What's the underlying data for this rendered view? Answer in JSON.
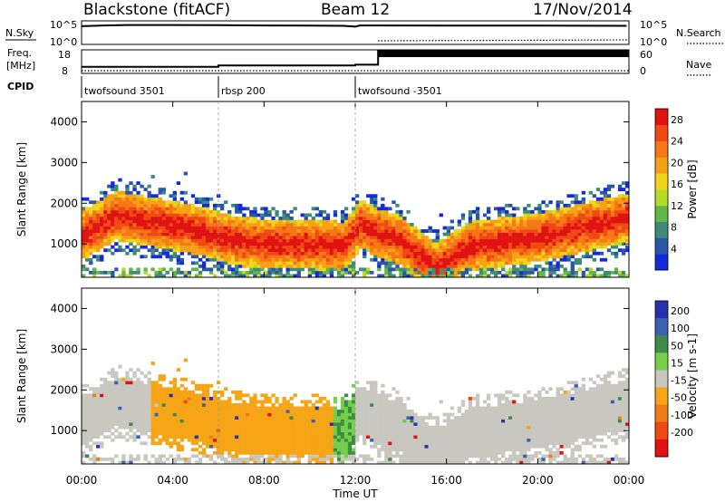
{
  "header": {
    "station": "Blackstone (fitACF)",
    "beam": "Beam 12",
    "date": "17/Nov/2014"
  },
  "noise_panel": {
    "left_label": "N.Sky",
    "right_label": "N.Search",
    "left_ticks": [
      "10^5",
      "10^0"
    ],
    "right_ticks": [
      "10^5",
      "10^0"
    ]
  },
  "freq_panel": {
    "left_label_1": "Freq.",
    "left_label_2": "[MHz]",
    "right_label": "Nave",
    "left_ticks": [
      "18",
      "8"
    ],
    "right_ticks": [
      "60",
      "0"
    ]
  },
  "cpid": {
    "label": "CPID",
    "segments": [
      {
        "name": "twofsound 3501",
        "start_hr": 0.0
      },
      {
        "name": "rbsp 200",
        "start_hr": 6.0
      },
      {
        "name": "twofsound -3501",
        "start_hr": 12.0
      }
    ]
  },
  "axes": {
    "xlabel": "Time UT",
    "x_ticks": [
      "00:00",
      "04:00",
      "08:00",
      "12:00",
      "16:00",
      "20:00",
      "00:00"
    ],
    "ylabel_top": "Slant Range [km]",
    "ylabel_bottom": "Slant Range [km]",
    "y_ticks": [
      "1000",
      "2000",
      "3000",
      "4000"
    ]
  },
  "colorbars": {
    "power": {
      "label": "Power [dB]",
      "ticks": [
        "4",
        "8",
        "12",
        "16",
        "20",
        "24",
        "28"
      ],
      "colors": [
        "#1428dc",
        "#2a56a8",
        "#3f8a78",
        "#62b64a",
        "#b6da2a",
        "#f2d41a",
        "#f7a216",
        "#f77616",
        "#f04a14",
        "#e01212"
      ]
    },
    "velocity": {
      "label": "Velocity [m s-1]",
      "ticks": [
        "200",
        "100",
        "50",
        "15",
        "-15",
        "-50",
        "-100",
        "-200"
      ],
      "colors": [
        "#2830b0",
        "#3a62b0",
        "#3f8a48",
        "#74d04a",
        "#c8c8c0",
        "#f5a516",
        "#f27a16",
        "#ee4a14",
        "#e01212"
      ]
    }
  },
  "chart_data": [
    {
      "type": "line",
      "panel": "noise",
      "x_unit": "hours UT",
      "xlim": [
        0,
        24
      ],
      "series": [
        {
          "x": [
            0,
            1,
            2,
            4,
            6,
            8,
            10,
            11.5,
            12,
            12.2,
            13,
            16,
            20,
            23.9
          ],
          "values_log10": [
            4.6,
            4.8,
            4.9,
            4.9,
            4.85,
            4.8,
            4.75,
            4.7,
            4.5,
            4.8,
            4.8,
            4.75,
            4.75,
            4.7
          ]
        }
      ]
    },
    {
      "type": "line",
      "panel": "frequency",
      "x_unit": "hours UT",
      "ylim": [
        8,
        18
      ],
      "series": [
        {
          "x": [
            0,
            6,
            6,
            12,
            12,
            13,
            13,
            24
          ],
          "values": [
            10.6,
            10.6,
            11.2,
            11.2,
            11.6,
            11.6,
            17.8,
            17.8
          ]
        }
      ]
    },
    {
      "type": "heatmap",
      "panel": "power",
      "x_unit": "hours UT",
      "y_unit": "km",
      "xlim": [
        0,
        24
      ],
      "ylim": [
        180,
        4500
      ],
      "z_unit": "dB",
      "band_peak_range_km": [
        {
          "t": 0.0,
          "km": 1200
        },
        {
          "t": 1.5,
          "km": 1700
        },
        {
          "t": 3.0,
          "km": 1550
        },
        {
          "t": 5.0,
          "km": 1350
        },
        {
          "t": 7.0,
          "km": 1050
        },
        {
          "t": 9.0,
          "km": 1000
        },
        {
          "t": 11.5,
          "km": 950
        },
        {
          "t": 12.3,
          "km": 1500
        },
        {
          "t": 13.0,
          "km": 1250
        },
        {
          "t": 14.0,
          "km": 1100
        },
        {
          "t": 15.5,
          "km": 400
        },
        {
          "t": 17.0,
          "km": 950
        },
        {
          "t": 20.0,
          "km": 1150
        },
        {
          "t": 24.0,
          "km": 1650
        }
      ]
    },
    {
      "type": "heatmap",
      "panel": "velocity",
      "x_unit": "hours UT",
      "y_unit": "km",
      "xlim": [
        0,
        24
      ],
      "ylim": [
        180,
        4500
      ],
      "z_unit": "m s-1",
      "dominant_velocity": [
        {
          "t_start": 0.0,
          "t_end": 3.0,
          "value": 0
        },
        {
          "t_start": 3.0,
          "t_end": 11.0,
          "value": -30
        },
        {
          "t_start": 11.0,
          "t_end": 12.0,
          "value": 30
        },
        {
          "t_start": 12.0,
          "t_end": 24.0,
          "value": 0
        }
      ]
    }
  ]
}
